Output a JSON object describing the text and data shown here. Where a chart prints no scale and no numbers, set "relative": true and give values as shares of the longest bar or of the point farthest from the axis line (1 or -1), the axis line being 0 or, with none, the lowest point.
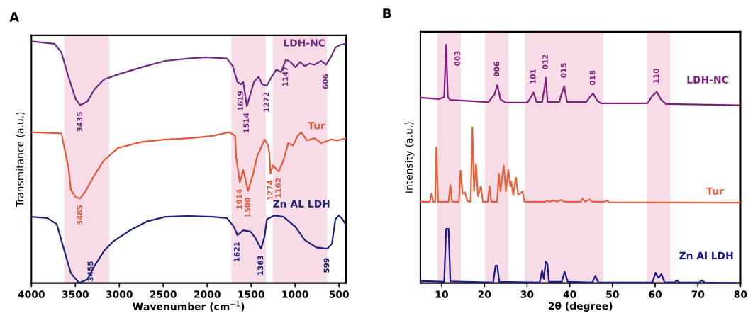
{
  "chart_data": [
    {
      "type": "line",
      "title": "A",
      "xlabel": "Wavenumber (cm$^{−1}$)",
      "ylabel": "Transmitance (a.u.)",
      "relative": true,
      "tick_labels": "x",
      "xlim": [
        4000,
        420
      ],
      "xticks": [
        4000,
        3500,
        3000,
        2500,
        2000,
        1500,
        1000,
        500
      ],
      "series": [
        {
          "name": "LDH-NC",
          "color": "#6e2a82",
          "x": [
            4000,
            3739,
            3659,
            3578,
            3497,
            3444,
            3363,
            3282,
            3175,
            3014,
            2745,
            2476,
            2207,
            2019,
            1777,
            1710,
            1656,
            1616,
            1589,
            1549,
            1508,
            1468,
            1414,
            1374,
            1320,
            1266,
            1213,
            1159,
            1105,
            1051,
            997,
            944,
            890,
            836,
            782,
            702,
            648,
            594,
            541,
            487,
            420
          ],
          "values": [
            1.0,
            0.99,
            0.954,
            0.853,
            0.761,
            0.736,
            0.751,
            0.802,
            0.842,
            0.863,
            0.893,
            0.919,
            0.929,
            0.934,
            0.929,
            0.898,
            0.832,
            0.822,
            0.832,
            0.731,
            0.782,
            0.832,
            0.853,
            0.822,
            0.817,
            0.853,
            0.883,
            0.873,
            0.924,
            0.914,
            0.893,
            0.914,
            0.898,
            0.908,
            0.903,
            0.919,
            0.903,
            0.934,
            0.974,
            0.985,
            0.99
          ]
        },
        {
          "name": "Tur",
          "color": "#e05a3a",
          "x": [
            4000,
            3659,
            3578,
            3551,
            3497,
            3444,
            3390,
            3282,
            3175,
            3014,
            2745,
            2476,
            2207,
            1938,
            1750,
            1683,
            1669,
            1629,
            1589,
            1535,
            1481,
            1428,
            1401,
            1347,
            1307,
            1293,
            1280,
            1253,
            1186,
            1132,
            1078,
            1024,
            971,
            930,
            863,
            782,
            702,
            594,
            514,
            420
          ],
          "values": [
            0.624,
            0.619,
            0.477,
            0.386,
            0.355,
            0.35,
            0.377,
            0.447,
            0.508,
            0.559,
            0.584,
            0.594,
            0.599,
            0.609,
            0.624,
            0.609,
            0.518,
            0.416,
            0.468,
            0.381,
            0.447,
            0.529,
            0.548,
            0.594,
            0.569,
            0.538,
            0.453,
            0.487,
            0.462,
            0.508,
            0.579,
            0.569,
            0.609,
            0.624,
            0.59,
            0.599,
            0.579,
            0.594,
            0.59,
            0.599
          ]
        },
        {
          "name": "Zn AL LDH",
          "color": "#1e237a",
          "x": [
            4000,
            3820,
            3712,
            3632,
            3551,
            3457,
            3363,
            3282,
            3175,
            3067,
            2879,
            2691,
            2476,
            2207,
            1938,
            1777,
            1696,
            1656,
            1589,
            1508,
            1454,
            1387,
            1347,
            1320,
            1239,
            1132,
            997,
            890,
            756,
            635,
            581,
            541,
            500,
            460,
            420
          ],
          "values": [
            0.274,
            0.269,
            0.244,
            0.142,
            0.041,
            0.0,
            0.015,
            0.071,
            0.132,
            0.173,
            0.218,
            0.254,
            0.274,
            0.277,
            0.274,
            0.269,
            0.233,
            0.198,
            0.218,
            0.213,
            0.188,
            0.142,
            0.193,
            0.264,
            0.279,
            0.274,
            0.233,
            0.178,
            0.147,
            0.142,
            0.162,
            0.264,
            0.279,
            0.264,
            0.239
          ]
        }
      ],
      "bands": [
        {
          "axis": "x",
          "from": 3626,
          "to": 3116,
          "color": "#f7dce8"
        },
        {
          "axis": "x",
          "from": 1723,
          "to": 1333,
          "color": "#f7dce8"
        },
        {
          "axis": "x",
          "from": 1253,
          "to": 635,
          "color": "#f7dce8"
        }
      ],
      "annotations": [
        {
          "text": "3435",
          "x": 3444,
          "y": 0.736
        },
        {
          "text": "1619",
          "x": 1616,
          "y": 0.822
        },
        {
          "text": "1514",
          "x": 1549,
          "y": 0.731
        },
        {
          "text": "1272",
          "x": 1320,
          "y": 0.817
        },
        {
          "text": "1147",
          "x": 1105,
          "y": 0.924
        },
        {
          "text": "606",
          "x": 648,
          "y": 0.903
        },
        {
          "text": "3485",
          "x": 3444,
          "y": 0.35
        },
        {
          "text": "1614",
          "x": 1629,
          "y": 0.416
        },
        {
          "text": "1500",
          "x": 1535,
          "y": 0.381
        },
        {
          "text": "1274",
          "x": 1280,
          "y": 0.453
        },
        {
          "text": "1162",
          "x": 1186,
          "y": 0.462
        },
        {
          "text": "3455",
          "x": 3457,
          "y": 0.0
        },
        {
          "text": "1621",
          "x": 1656,
          "y": 0.198
        },
        {
          "text": "1363",
          "x": 1387,
          "y": 0.142
        },
        {
          "text": "599",
          "x": 635,
          "y": 0.142
        }
      ]
    },
    {
      "type": "line",
      "title": "B",
      "xlabel": "2θ (degree)",
      "ylabel": "Intensity (a.u.)",
      "relative": true,
      "tick_labels": "x",
      "xlim": [
        5,
        80
      ],
      "xticks": [
        10,
        20,
        30,
        40,
        50,
        60,
        70,
        80
      ],
      "series": [
        {
          "name": "LDH-NC",
          "color": "#7e1f7a",
          "x": [
            5.0,
            9.43,
            10.57,
            11.03,
            11.43,
            12.01,
            20.9,
            22.34,
            23.02,
            23.77,
            24.92,
            30.08,
            30.94,
            31.51,
            32.2,
            33.52,
            34.1,
            34.38,
            34.79,
            37.54,
            38.11,
            38.69,
            39.37,
            43.85,
            44.71,
            45.46,
            46.43,
            47.29,
            58.19,
            59.34,
            60.37,
            61.35,
            62.5,
            80
          ],
          "values": [
            0.778,
            0.772,
            0.78,
            1.0,
            0.78,
            0.768,
            0.759,
            0.79,
            0.831,
            0.77,
            0.757,
            0.757,
            0.78,
            0.8,
            0.759,
            0.759,
            0.821,
            0.862,
            0.759,
            0.759,
            0.795,
            0.826,
            0.759,
            0.759,
            0.78,
            0.795,
            0.765,
            0.754,
            0.754,
            0.785,
            0.802,
            0.77,
            0.751,
            0.746
          ]
        },
        {
          "name": "Tur",
          "color": "#e8603c",
          "x": [
            5.0,
            7.25,
            7.59,
            7.99,
            8.45,
            8.74,
            9.14,
            11.61,
            12.01,
            12.41,
            14.02,
            14.42,
            14.88,
            15.45,
            16.02,
            16.77,
            17.17,
            17.57,
            18.03,
            18.49,
            19.18,
            19.64,
            20.79,
            21.19,
            21.59,
            22.97,
            23.37,
            23.77,
            24.52,
            25.03,
            25.61,
            26.06,
            26.29,
            26.75,
            27.38,
            27.9,
            28.36,
            28.93,
            29.39,
            34.38,
            34.79,
            35.24,
            36.28,
            36.97,
            37.94,
            38.69,
            42.59,
            42.99,
            43.56,
            44.71,
            45.28,
            48.15,
            48.61,
            49.3,
            80
          ],
          "values": [
            0.341,
            0.341,
            0.377,
            0.341,
            0.341,
            0.569,
            0.341,
            0.341,
            0.411,
            0.341,
            0.341,
            0.472,
            0.375,
            0.38,
            0.344,
            0.341,
            0.652,
            0.385,
            0.5,
            0.365,
            0.406,
            0.341,
            0.341,
            0.406,
            0.341,
            0.341,
            0.459,
            0.385,
            0.493,
            0.385,
            0.475,
            0.406,
            0.426,
            0.37,
            0.442,
            0.37,
            0.375,
            0.385,
            0.341,
            0.341,
            0.347,
            0.341,
            0.347,
            0.341,
            0.349,
            0.341,
            0.341,
            0.354,
            0.341,
            0.351,
            0.341,
            0.341,
            0.346,
            0.339,
            0.337
          ]
        },
        {
          "name": "Zn Al LDH",
          "color": "#1a1a8c",
          "x": [
            5.0,
            10.57,
            11.03,
            11.61,
            12.01,
            22.05,
            22.62,
            23.02,
            23.48,
            32.95,
            33.52,
            33.92,
            34.38,
            34.79,
            35.13,
            38.11,
            38.8,
            39.55,
            45.28,
            45.97,
            46.72,
            59.34,
            60.09,
            60.77,
            61.46,
            62.21,
            64.62,
            65.08,
            65.65,
            70.24,
            70.93,
            71.68,
            80
          ],
          "values": [
            0.009,
            0.005,
            0.227,
            0.227,
            0.007,
            0.002,
            0.073,
            0.073,
            0.005,
            0.002,
            0.053,
            0.017,
            0.091,
            0.079,
            0.005,
            0.005,
            0.048,
            0.005,
            0.002,
            0.03,
            0.002,
            0.002,
            0.043,
            0.022,
            0.038,
            0.002,
            0.004,
            0.011,
            0.002,
            0.002,
            0.011,
            0.002,
            0.0
          ]
        }
      ],
      "bands": [
        {
          "axis": "x",
          "from": 8.97,
          "to": 14.48,
          "color": "#f7dce8"
        },
        {
          "axis": "x",
          "from": 20.15,
          "to": 25.61,
          "color": "#f7dce8"
        },
        {
          "axis": "x",
          "from": 29.5,
          "to": 47.87,
          "color": "#f7dce8"
        },
        {
          "axis": "x",
          "from": 58.0,
          "to": 63.5,
          "color": "#f7dce8"
        }
      ],
      "annotations": [
        {
          "text": "003",
          "x": 11.03,
          "y": 1.0
        },
        {
          "text": "006",
          "x": 23.02,
          "y": 0.831
        },
        {
          "text": "101",
          "x": 31.51,
          "y": 0.8
        },
        {
          "text": "012",
          "x": 34.38,
          "y": 0.862
        },
        {
          "text": "015",
          "x": 38.69,
          "y": 0.826
        },
        {
          "text": "018",
          "x": 45.46,
          "y": 0.795
        },
        {
          "text": "110",
          "x": 60.37,
          "y": 0.802
        }
      ]
    }
  ]
}
